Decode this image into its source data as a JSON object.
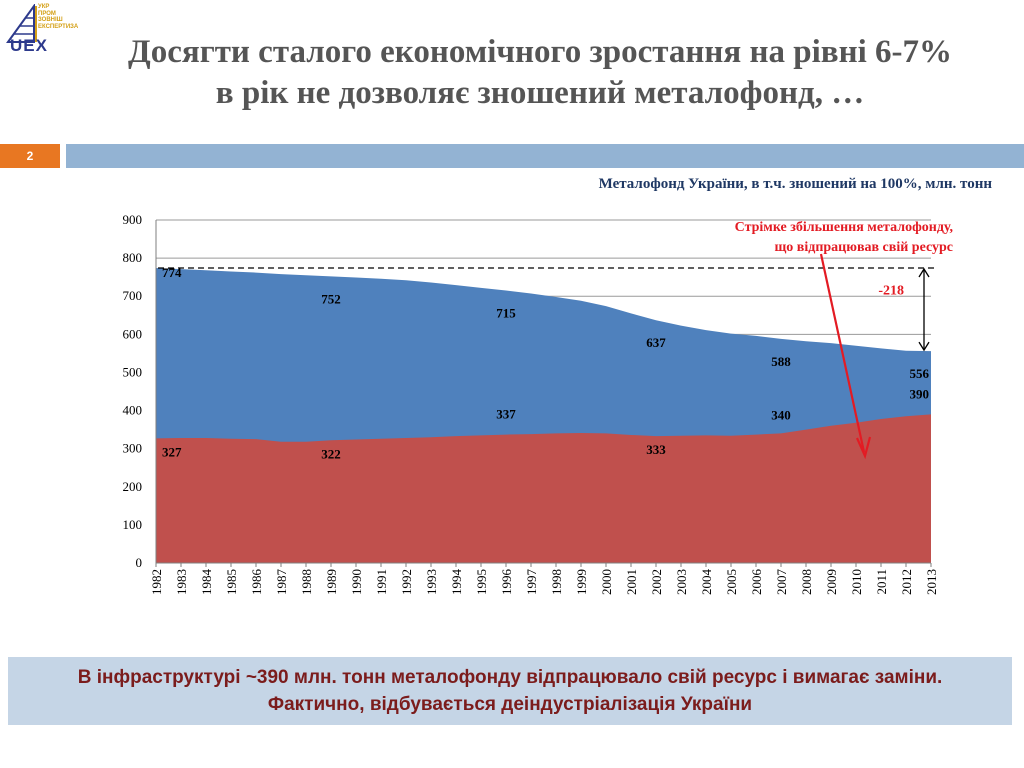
{
  "logo": {
    "text": "UEX",
    "side_lines": [
      "УКР",
      "ПРОМ",
      "ЗОВНІШ",
      "ЕКСПЕРТИЗА"
    ]
  },
  "header": {
    "title_line1": "Досягти сталого економічного зростання на рівні 6-7%",
    "title_line2": "в рік не дозволяє зношений металофонд, …",
    "slide_number": "2"
  },
  "subtitle": "Металофонд України, в т.ч. зношений на 100%,  млн. тонн",
  "footer": {
    "text": "В інфраструктурі ~390 млн. тонн металофонду відпрацювало свій ресурс і вимагає заміни. Фактично, відбувається деіндустріалізація України"
  },
  "colors": {
    "total_area": "#4f81bd",
    "worn_area": "#c0504d",
    "band": "#93b3d3",
    "accent": "#e87722",
    "annotation": "#e31b23"
  },
  "chart_data": {
    "type": "area",
    "x": [
      1982,
      1983,
      1984,
      1985,
      1986,
      1987,
      1988,
      1989,
      1990,
      1991,
      1992,
      1993,
      1994,
      1995,
      1996,
      1997,
      1998,
      1999,
      2000,
      2001,
      2002,
      2003,
      2004,
      2005,
      2006,
      2007,
      2008,
      2009,
      2010,
      2011,
      2012,
      2013
    ],
    "x_tick_labels": [
      "1982",
      "1983",
      "1984",
      "1985",
      "1986",
      "1987",
      "1988",
      "1989",
      "1990",
      "1991",
      "1992",
      "1993",
      "1994",
      "1995",
      "1996",
      "1997",
      "1998",
      "1999",
      "2000",
      "2001",
      "2002",
      "2003",
      "2004",
      "2005",
      "2006",
      "2007",
      "2008",
      "2009",
      "2010",
      "2011",
      "2012",
      "2013"
    ],
    "series": [
      {
        "values": [
          774,
          771,
          768,
          765,
          762,
          758,
          755,
          752,
          749,
          746,
          742,
          736,
          729,
          722,
          715,
          707,
          698,
          688,
          674,
          655,
          637,
          623,
          611,
          602,
          596,
          588,
          582,
          577,
          570,
          563,
          557,
          556
        ]
      },
      {
        "values": [
          327,
          328,
          328,
          326,
          325,
          318,
          318,
          322,
          324,
          326,
          328,
          330,
          333,
          335,
          337,
          338,
          340,
          341,
          340,
          336,
          333,
          334,
          335,
          334,
          337,
          340,
          350,
          360,
          368,
          378,
          385,
          390
        ]
      }
    ],
    "data_labels": [
      {
        "series": 0,
        "x": 1982,
        "text": "774"
      },
      {
        "series": 0,
        "x": 1989,
        "text": "752"
      },
      {
        "series": 0,
        "x": 1996,
        "text": "715"
      },
      {
        "series": 0,
        "x": 2002,
        "text": "637"
      },
      {
        "series": 0,
        "x": 2007,
        "text": "588"
      },
      {
        "series": 0,
        "x": 2013,
        "text": "556"
      },
      {
        "series": 1,
        "x": 1982,
        "text": "327"
      },
      {
        "series": 1,
        "x": 1989,
        "text": "322"
      },
      {
        "series": 1,
        "x": 1996,
        "text": "337"
      },
      {
        "series": 1,
        "x": 2002,
        "text": "333"
      },
      {
        "series": 1,
        "x": 2007,
        "text": "340"
      },
      {
        "series": 1,
        "x": 2013,
        "text": "390"
      }
    ],
    "ylim": [
      0,
      900
    ],
    "y_ticks": [
      0,
      100,
      200,
      300,
      400,
      500,
      600,
      700,
      800,
      900
    ],
    "grid": true,
    "reference_line": {
      "y": 774,
      "style": "dashed"
    },
    "annotations": {
      "note_line1": "Стрімке збільшення металофонду,",
      "note_line2": "що відпрацював свій ресурс",
      "difference": "-218"
    }
  }
}
